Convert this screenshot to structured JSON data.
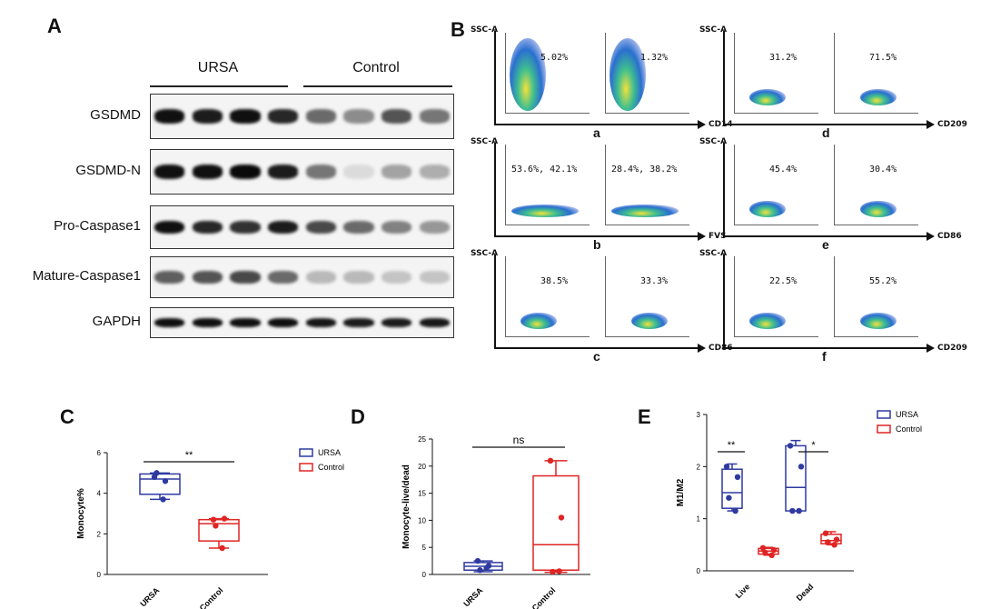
{
  "panels": {
    "A": "A",
    "B": "B",
    "C": "C",
    "D": "D",
    "E": "E"
  },
  "western_blot": {
    "groups": [
      "URSA",
      "Control"
    ],
    "rows": [
      {
        "label": "GSDMD",
        "intensity": [
          0.95,
          0.9,
          0.95,
          0.85,
          0.55,
          0.4,
          0.65,
          0.5
        ]
      },
      {
        "label": "GSDMD-N",
        "intensity": [
          0.95,
          0.95,
          0.98,
          0.9,
          0.5,
          0.05,
          0.3,
          0.25
        ]
      },
      {
        "label": "Pro-Caspase1",
        "intensity": [
          0.95,
          0.85,
          0.8,
          0.9,
          0.7,
          0.55,
          0.45,
          0.35
        ]
      },
      {
        "label": "Mature-Caspase1",
        "intensity": [
          0.6,
          0.65,
          0.7,
          0.55,
          0.2,
          0.2,
          0.15,
          0.15
        ]
      },
      {
        "label": "GAPDH",
        "intensity": [
          0.95,
          0.95,
          0.95,
          0.95,
          0.92,
          0.9,
          0.9,
          0.92
        ]
      }
    ]
  },
  "flow": {
    "ssc_label": "SSC-A",
    "panels": [
      {
        "letter": "a",
        "marker": "CD14",
        "pct": [
          "5.02%",
          "1.32%"
        ]
      },
      {
        "letter": "b",
        "marker": "FVS",
        "pct": [
          "53.6%, 42.1%",
          "28.4%, 38.2%"
        ]
      },
      {
        "letter": "c",
        "marker": "CD86",
        "pct": [
          "38.5%",
          "33.3%"
        ]
      },
      {
        "letter": "d",
        "marker": "CD209",
        "pct": [
          "31.2%",
          "71.5%"
        ]
      },
      {
        "letter": "e",
        "marker": "CD86",
        "pct": [
          "45.4%",
          "30.4%"
        ]
      },
      {
        "letter": "f",
        "marker": "CD209",
        "pct": [
          "22.5%",
          "55.2%"
        ]
      }
    ]
  },
  "chart_data": [
    {
      "id": "C",
      "type": "box",
      "ylabel": "Monocyte%",
      "categories": [
        "URSA",
        "Control"
      ],
      "ylim": [
        0,
        6
      ],
      "yticks": [
        0,
        2,
        4,
        6
      ],
      "significance": "**",
      "legend": [
        "URSA",
        "Control"
      ],
      "boxes": [
        {
          "name": "URSA",
          "min": 3.7,
          "q1": 3.95,
          "median": 4.7,
          "q3": 4.95,
          "max": 5.0,
          "points": [
            4.8,
            4.6,
            5.0,
            3.7
          ]
        },
        {
          "name": "Control",
          "min": 1.3,
          "q1": 1.65,
          "median": 2.5,
          "q3": 2.7,
          "max": 2.75,
          "points": [
            2.7,
            2.75,
            2.4,
            1.3
          ]
        }
      ]
    },
    {
      "id": "D",
      "type": "box",
      "ylabel": "Monocyte-live/dead",
      "categories": [
        "URSA",
        "Control"
      ],
      "ylim": [
        0,
        25
      ],
      "yticks": [
        0,
        5,
        10,
        15,
        20,
        25
      ],
      "significance": "ns",
      "boxes": [
        {
          "name": "URSA",
          "min": 0.5,
          "q1": 0.8,
          "median": 1.5,
          "q3": 2.2,
          "max": 2.5,
          "points": [
            2.5,
            1.6,
            0.8,
            1.2
          ]
        },
        {
          "name": "Control",
          "min": 0.4,
          "q1": 0.8,
          "median": 5.5,
          "q3": 18.2,
          "max": 21.0,
          "points": [
            21.0,
            10.5,
            0.5,
            0.6
          ]
        }
      ]
    },
    {
      "id": "E",
      "type": "box",
      "ylabel": "M1/M2",
      "categories": [
        "Live",
        "Dead"
      ],
      "ylim": [
        0,
        3
      ],
      "yticks": [
        0,
        1,
        2,
        3
      ],
      "legend": [
        "URSA",
        "Control"
      ],
      "significance": [
        "**",
        "*"
      ],
      "groups": [
        {
          "category": "Live",
          "boxes": [
            {
              "name": "URSA",
              "min": 1.15,
              "q1": 1.2,
              "median": 1.5,
              "q3": 1.95,
              "max": 2.05,
              "points": [
                2.0,
                1.8,
                1.4,
                1.15
              ]
            },
            {
              "name": "Control",
              "min": 0.3,
              "q1": 0.32,
              "median": 0.38,
              "q3": 0.43,
              "max": 0.45,
              "points": [
                0.44,
                0.4,
                0.35,
                0.3
              ]
            }
          ]
        },
        {
          "category": "Dead",
          "boxes": [
            {
              "name": "URSA",
              "min": 1.15,
              "q1": 1.15,
              "median": 1.6,
              "q3": 2.4,
              "max": 2.5,
              "points": [
                2.4,
                2.0,
                1.15,
                1.15
              ]
            },
            {
              "name": "Control",
              "min": 0.5,
              "q1": 0.52,
              "median": 0.58,
              "q3": 0.7,
              "max": 0.75,
              "points": [
                0.72,
                0.6,
                0.55,
                0.5
              ]
            }
          ]
        }
      ]
    }
  ],
  "colors": {
    "ursa": "#2f3aa0",
    "control": "#e02424"
  }
}
